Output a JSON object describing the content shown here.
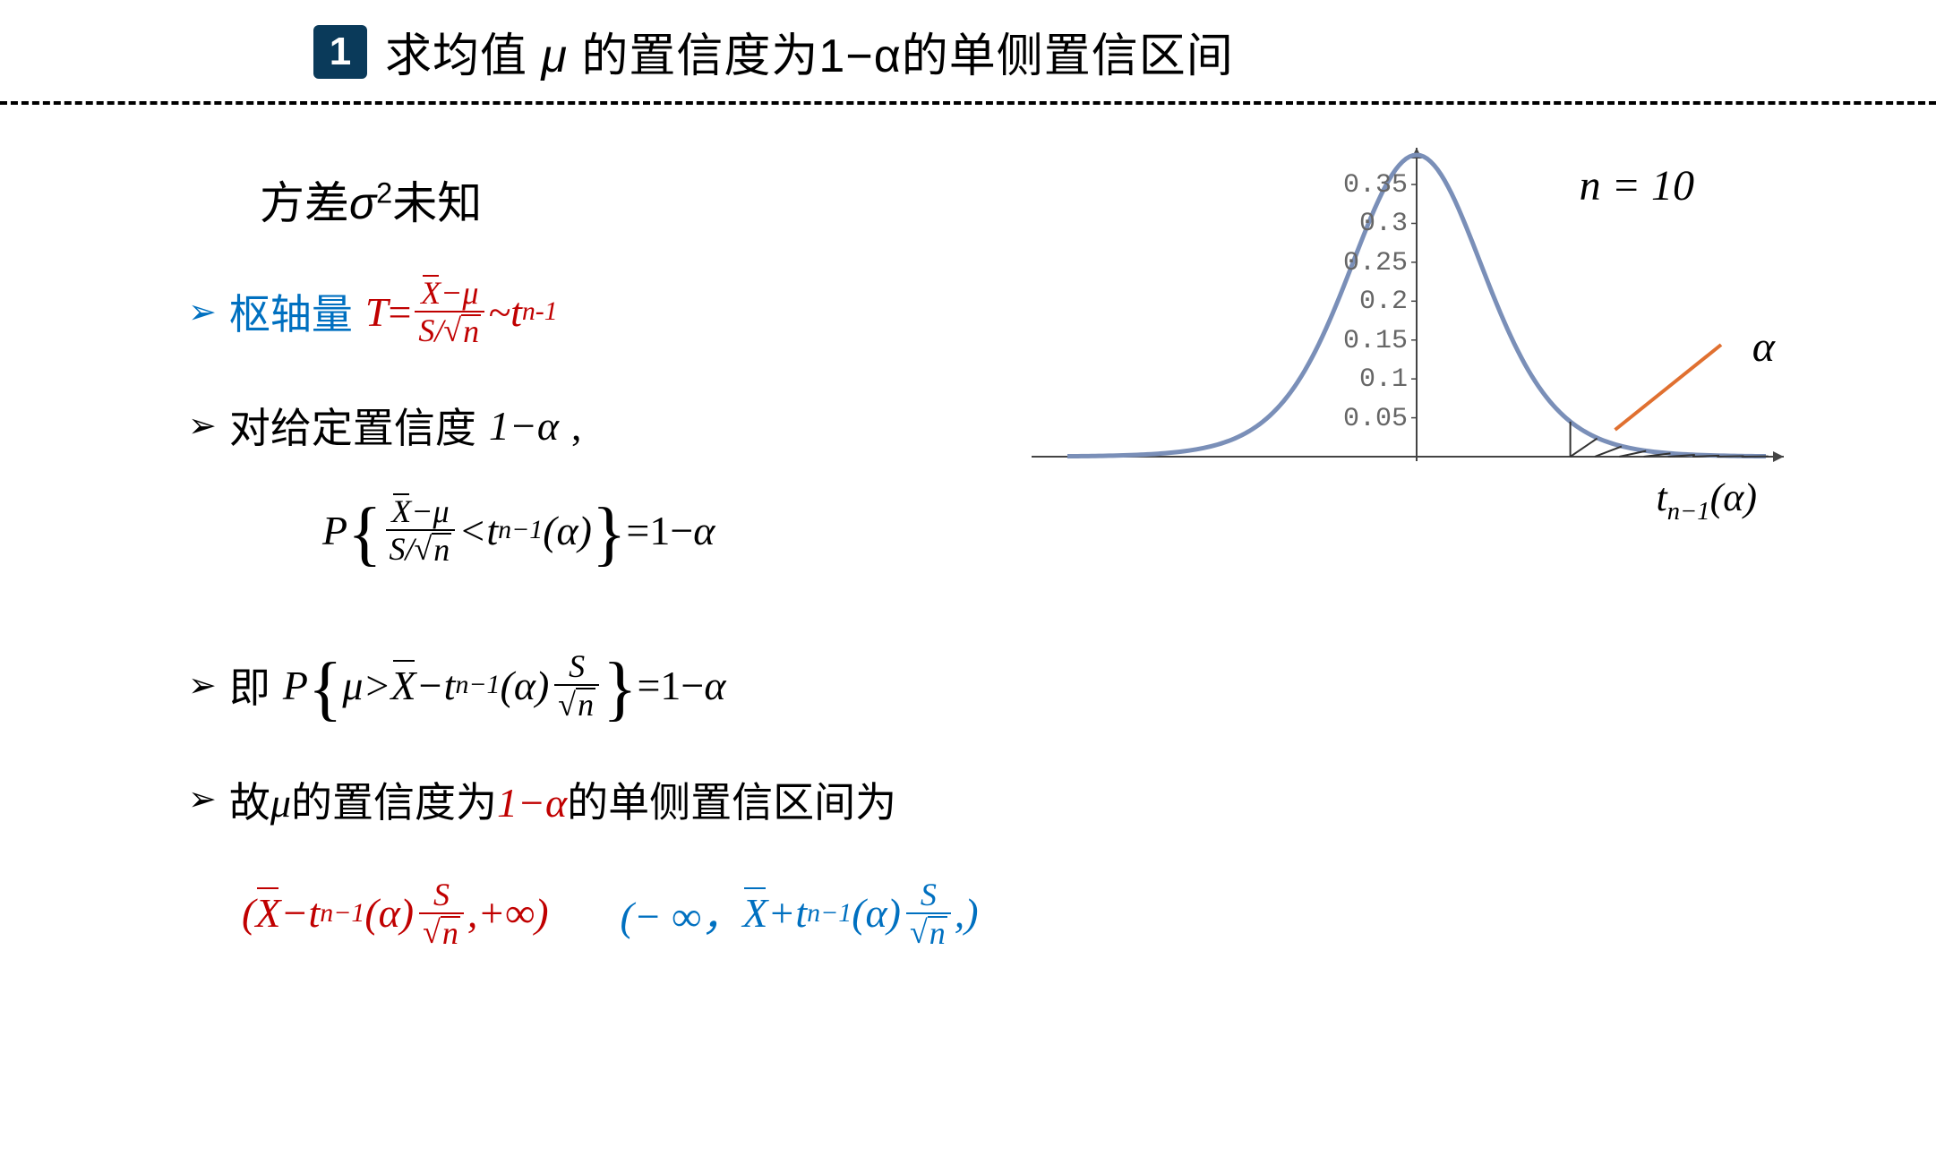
{
  "header": {
    "badge": "1",
    "title_pre": "求均值 ",
    "title_mu": "μ",
    "title_mid": " 的置信度为",
    "title_conf": "1−α",
    "title_post": "的单侧置信区间"
  },
  "subtitle": {
    "pre": "方差",
    "sigma": "σ",
    "sup": "2",
    "post": "未知"
  },
  "line1": {
    "bullet": "➢",
    "label": "枢轴量 ",
    "T": "T",
    "eq": " = ",
    "num_x": "X",
    "num_minus": "−",
    "num_mu": "μ",
    "den_s": "S",
    "den_slash": "/",
    "den_n": "n",
    "tilde": " ~",
    "t": "t",
    "sub": "n-1"
  },
  "line2": {
    "bullet": "➢",
    "text_pre": "对给定置信度",
    "conf": "1−α",
    "text_post": " ,"
  },
  "formula2": {
    "P": "P",
    "lbrace": "{",
    "num_x": "X",
    "num_minus": "−",
    "num_mu": "μ",
    "den_s": "S",
    "den_slash": "/",
    "den_n": "n",
    "lt": " < ",
    "t": "t",
    "sub": "n−1",
    "alpha_arg": "(α)",
    "rbrace": "}",
    "eq": "=1−",
    "alpha": "α"
  },
  "line3": {
    "bullet": "➢",
    "pre": "即",
    "P": "P",
    "lbrace": "{",
    "mu": "μ",
    "gt": " > ",
    "X": "X",
    "minus": " − ",
    "t": "t",
    "sub": "n−1",
    "alpha_arg": "(α)",
    "s_num": "S",
    "s_den_n": "n",
    "rbrace": "}",
    "eq": "=1−",
    "alpha": "α"
  },
  "line4": {
    "bullet": "➢",
    "pre": "故",
    "mu": "μ",
    "mid": "的置信度为",
    "conf": "1−α",
    "post": "的单侧置信区间为"
  },
  "final": {
    "left_open": "(",
    "X": "X",
    "minus": " − ",
    "t": "t",
    "sub": "n−1",
    "alpha_arg": "(α)",
    "s_num": "S",
    "s_den_n": "n",
    "comma": ",",
    "pinf": " +∞)",
    "r_open": "(− ∞，",
    "plus": " + ",
    "r_close": ",)"
  },
  "chart": {
    "n_label": "n = 10",
    "alpha_label": "α",
    "t_label_t": "t",
    "t_label_sub": "n−1",
    "t_label_arg": "(α)",
    "yticks": [
      "0.05",
      "0.1",
      "0.15",
      "0.2",
      "0.25",
      "0.3",
      "0.35"
    ],
    "ytick_values": [
      0.05,
      0.1,
      0.15,
      0.2,
      0.25,
      0.3,
      0.35
    ],
    "ymax": 0.38,
    "xrange": [
      -5,
      5
    ],
    "critical_x": 2.2,
    "curve_color": "#7a8fb8",
    "axis_color": "#444444",
    "tick_color": "#666666",
    "arrow_color": "#e07030",
    "hatch_color": "#333333"
  }
}
